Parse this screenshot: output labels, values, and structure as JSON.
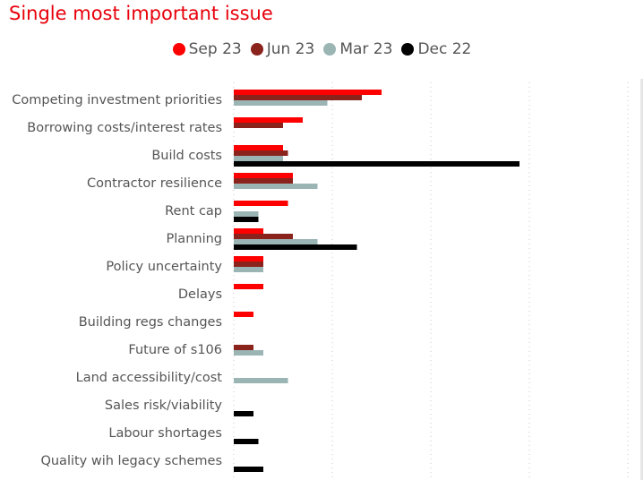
{
  "chart_data": {
    "type": "bar",
    "orientation": "horizontal",
    "title": "Single most important issue",
    "categories": [
      "Competing investment priorities",
      "Borrowing costs/interest rates",
      "Build costs",
      "Contractor resilience",
      "Rent cap",
      "Planning",
      "Policy uncertainty",
      "Delays",
      "Building regs changes",
      "Future of s106",
      "Land accessibility/cost",
      "Sales risk/viability",
      "Labour shortages",
      "Quality wih legacy schemes"
    ],
    "series": [
      {
        "name": "Sep 23",
        "color": "#ff0000",
        "values": [
          30,
          14,
          10,
          12,
          11,
          6,
          6,
          6,
          4,
          0,
          0,
          0,
          0,
          0
        ]
      },
      {
        "name": "Jun 23",
        "color": "#8b231d",
        "values": [
          26,
          10,
          11,
          12,
          0,
          12,
          6,
          0,
          0,
          4,
          0,
          0,
          0,
          0
        ]
      },
      {
        "name": "Mar 23",
        "color": "#9bb4b4",
        "values": [
          19,
          0,
          10,
          17,
          5,
          17,
          6,
          0,
          0,
          6,
          11,
          0,
          0,
          0
        ]
      },
      {
        "name": "Dec 22",
        "color": "#000000",
        "values": [
          0,
          0,
          58,
          0,
          5,
          25,
          0,
          0,
          0,
          0,
          0,
          4,
          5,
          6
        ]
      }
    ],
    "xlim": [
      0,
      80
    ],
    "grid": true,
    "gridlines": [
      0,
      20,
      40,
      60,
      80
    ],
    "legend_position": "top-center"
  }
}
